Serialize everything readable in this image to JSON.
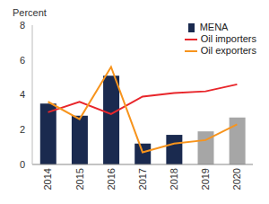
{
  "chart_data": {
    "type": "bar",
    "y_label": "Percent",
    "categories": [
      "2014",
      "2015",
      "2016",
      "2017",
      "2018",
      "2019",
      "2020"
    ],
    "series": [
      {
        "name": "MENA",
        "type": "bar",
        "color": "#1a2a4f",
        "colors": [
          "#1a2a4f",
          "#1a2a4f",
          "#1a2a4f",
          "#1a2a4f",
          "#1a2a4f",
          "#a6a6a6",
          "#a6a6a6"
        ],
        "values": [
          3.5,
          2.8,
          5.1,
          1.2,
          1.7,
          1.9,
          2.7
        ]
      },
      {
        "name": "Oil importers",
        "type": "line",
        "color": "#e8262b",
        "values": [
          3.0,
          3.6,
          2.9,
          3.9,
          4.1,
          4.2,
          4.6
        ]
      },
      {
        "name": "Oil exporters",
        "type": "line",
        "color": "#f7941d",
        "values": [
          3.6,
          2.6,
          5.6,
          0.7,
          1.2,
          1.4,
          2.3
        ]
      }
    ],
    "ylim": [
      0,
      8
    ],
    "yticks": [
      0,
      2,
      4,
      6,
      8
    ],
    "grid": false,
    "legend": "upper right"
  }
}
